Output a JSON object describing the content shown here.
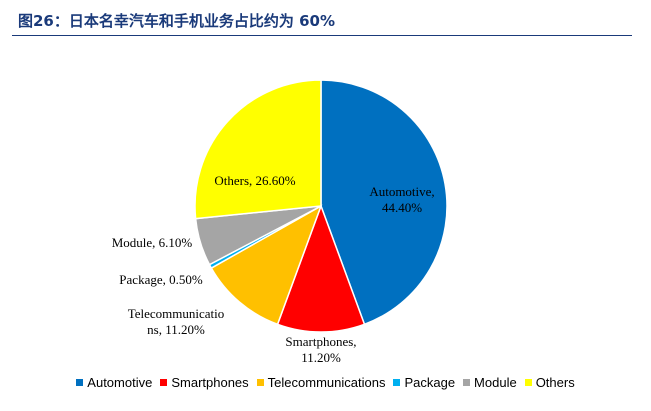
{
  "title": "图26：日本名幸汽车和手机业务占比约为 60%",
  "chart_data": {
    "type": "pie",
    "title": "",
    "slices": [
      {
        "name": "Automotive",
        "value": 44.4,
        "color": "#0070c0",
        "label_lines": [
          "Automotive,",
          "44.40%"
        ]
      },
      {
        "name": "Smartphones",
        "value": 11.2,
        "color": "#ff0000",
        "label_lines": [
          "Smartphones,",
          "11.20%"
        ]
      },
      {
        "name": "Telecommunications",
        "value": 11.2,
        "color": "#ffc000",
        "label_lines": [
          "Telecommunicatio",
          "ns, 11.20%"
        ]
      },
      {
        "name": "Package",
        "value": 0.5,
        "color": "#00b0f0",
        "label_lines": [
          "Package, 0.50%"
        ]
      },
      {
        "name": "Module",
        "value": 6.1,
        "color": "#a5a5a5",
        "label_lines": [
          "Module, 6.10%"
        ]
      },
      {
        "name": "Others",
        "value": 26.6,
        "color": "#ffff00",
        "label_lines": [
          "Others, 26.60%"
        ]
      }
    ],
    "legend_position": "bottom"
  }
}
